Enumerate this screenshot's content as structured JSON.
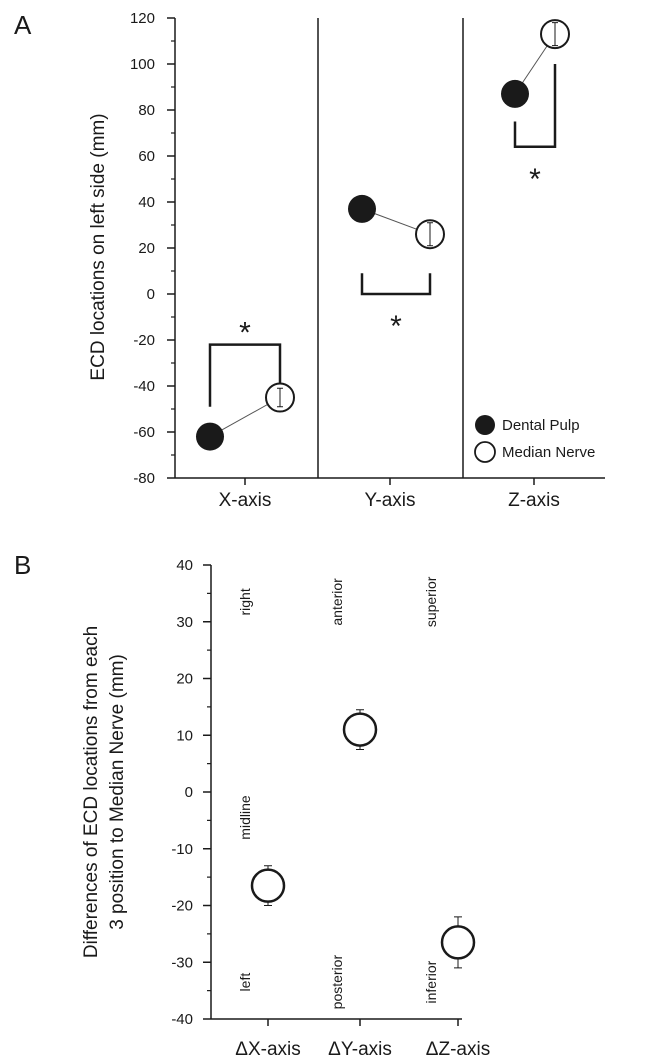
{
  "figure": {
    "panel_a_letter": "A",
    "panel_b_letter": "B"
  },
  "chart_data": [
    {
      "type": "scatter",
      "panel": "A",
      "ylabel": "ECD locations on left side (mm)",
      "ylim": [
        -80,
        120
      ],
      "yticks": [
        120,
        100,
        80,
        60,
        40,
        20,
        0,
        -20,
        -40,
        -60,
        -80
      ],
      "categories": [
        "X-axis",
        "Y-axis",
        "Z-axis"
      ],
      "series": [
        {
          "name": "Dental Pulp",
          "marker": "filled-circle",
          "values": [
            -62,
            37,
            87
          ]
        },
        {
          "name": "Median Nerve",
          "marker": "open-circle",
          "values": [
            -45,
            26,
            113
          ],
          "error": [
            4,
            5,
            5
          ]
        }
      ],
      "significance": [
        "*",
        "*",
        "*"
      ],
      "legend_position": "bottom-right",
      "grid": false
    },
    {
      "type": "scatter",
      "panel": "B",
      "ylabel_lines": [
        "Differences of ECD locations from each",
        "3 position to Median Nerve (mm)"
      ],
      "ylim": [
        -40,
        40
      ],
      "yticks": [
        40,
        30,
        20,
        10,
        0,
        -10,
        -20,
        -30,
        -40
      ],
      "categories": [
        "ΔX-axis",
        "ΔY-axis",
        "ΔZ-axis"
      ],
      "values": [
        -16.5,
        11,
        -26.5
      ],
      "error": [
        3.5,
        3.5,
        4.5
      ],
      "direction_labels": {
        "top": [
          "right",
          "anterior",
          "superior"
        ],
        "midline": "midline",
        "bottom": [
          "left",
          "posterior",
          "inferior"
        ]
      },
      "grid": false
    }
  ],
  "colors": {
    "ink": "#1a1a1a",
    "filled_marker": "#1a1a1a",
    "open_marker_fill": "#ffffff",
    "bracket": "#1a1a1a"
  }
}
